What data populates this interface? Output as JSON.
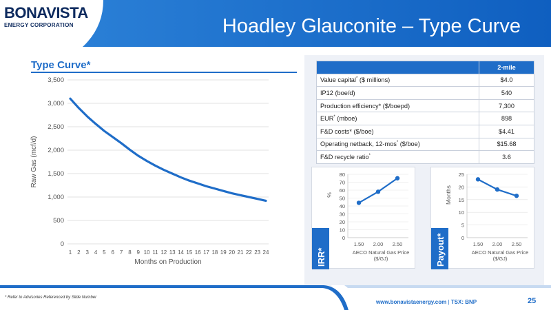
{
  "logo": {
    "main": "BONAVISTA",
    "sub": "ENERGY CORPORATION"
  },
  "title": "Hoadley Glauconite – Type Curve",
  "section_title": "Type Curve*",
  "colors": {
    "accent": "#1f6dc8",
    "navy": "#0d2a5e",
    "panel": "#eef1f7"
  },
  "table": {
    "header": "2-mile",
    "rows": [
      {
        "label": "Value capital",
        "sup": "*",
        "label_rest": " ($ millions)",
        "value": "$4.0"
      },
      {
        "label": "IP12 (boe/d)",
        "sup": "",
        "label_rest": "",
        "value": "540"
      },
      {
        "label": "Production efficiency* ($/boepd)",
        "sup": "",
        "label_rest": "",
        "value": "7,300"
      },
      {
        "label": "EUR",
        "sup": "*",
        "label_rest": " (mboe)",
        "value": "898"
      },
      {
        "label": "F&D costs* ($/boe)",
        "sup": "",
        "label_rest": "",
        "value": "$4.41"
      },
      {
        "label": "Operating netback, 12-mos",
        "sup": "*",
        "label_rest": " ($/boe)",
        "value": "$15.68"
      },
      {
        "label": "F&D recycle ratio",
        "sup": "*",
        "label_rest": "",
        "value": "3.6"
      }
    ]
  },
  "chart_data": [
    {
      "type": "line",
      "title": "Type Curve*",
      "xlabel": "Months on Production",
      "ylabel": "Raw Gas (mcf/d)",
      "x": [
        1,
        2,
        3,
        4,
        5,
        6,
        7,
        8,
        9,
        10,
        11,
        12,
        13,
        14,
        15,
        16,
        17,
        18,
        19,
        20,
        21,
        22,
        23,
        24
      ],
      "x_tick_labels": [
        "1",
        "2",
        "3",
        "4",
        "5",
        "6",
        "7",
        "8",
        "9",
        "10",
        "11",
        "12",
        "13",
        "14",
        "15",
        "16",
        "17",
        "18",
        "19",
        "20",
        "21",
        "22",
        "23",
        "24"
      ],
      "y": [
        3100,
        2900,
        2720,
        2560,
        2410,
        2280,
        2150,
        2010,
        1880,
        1770,
        1670,
        1580,
        1500,
        1420,
        1350,
        1290,
        1230,
        1180,
        1130,
        1080,
        1040,
        1000,
        960,
        920
      ],
      "ylim": [
        0,
        3500
      ],
      "yticks": [
        "0",
        "500",
        "1,000",
        "1,500",
        "2,000",
        "2,500",
        "3,000",
        "3,500"
      ],
      "grid": true
    },
    {
      "type": "line",
      "title": "IRR*",
      "ylabel": "%",
      "xlabel": "AECO Natural Gas Price ($/GJ)",
      "xlabel_line1": "AECO Natural Gas Price",
      "xlabel_line2": "($/GJ)",
      "x": [
        "1.50",
        "2.00",
        "2.50"
      ],
      "y": [
        44,
        58,
        75
      ],
      "ylim": [
        0,
        80
      ],
      "yticks": [
        "0",
        "10",
        "20",
        "30",
        "40",
        "50",
        "60",
        "70",
        "80"
      ]
    },
    {
      "type": "line",
      "title": "Payout*",
      "ylabel": "Months",
      "xlabel": "AECO Natural Gas Price ($/GJ)",
      "xlabel_line1": "AECO Natural Gas Price",
      "xlabel_line2": "($/GJ)",
      "x": [
        "1.50",
        "2.00",
        "2.50"
      ],
      "y": [
        23,
        19,
        16.5
      ],
      "ylim": [
        0,
        25
      ],
      "yticks": [
        "0",
        "5",
        "10",
        "15",
        "20",
        "25"
      ]
    }
  ],
  "footer": {
    "note": "* Refer to Advisories Referenced by Slide Number",
    "url": "www.bonavistaenergy.com",
    "separator": "|",
    "ticker": "TSX: BNP",
    "page": "25"
  }
}
